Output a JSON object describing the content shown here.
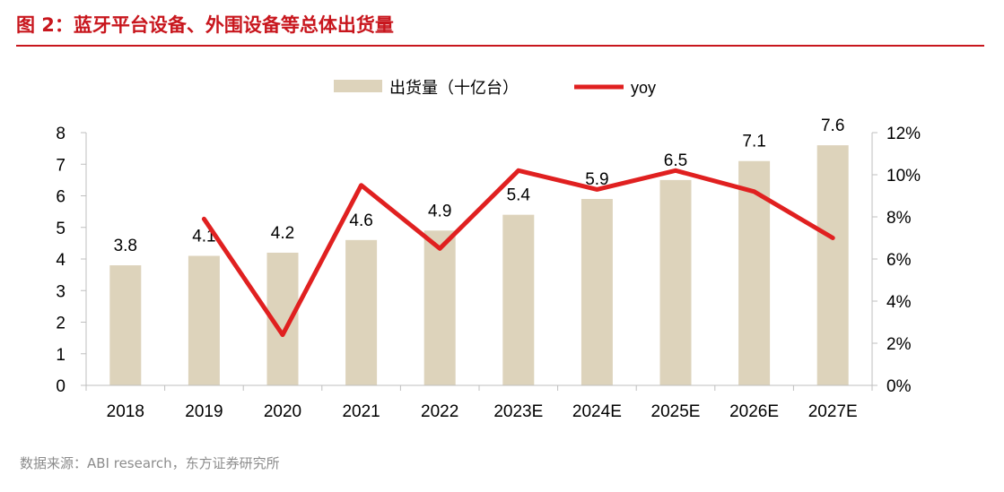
{
  "figure": {
    "title": "图 2：蓝牙平台设备、外围设备等总体出货量",
    "source": "数据来源：ABI research，东方证券研究所"
  },
  "colors": {
    "title_red": "#c8161d",
    "bar_fill": "#ddd3bb",
    "line_red": "#e02020",
    "axis_gray": "#bfbfbf",
    "text": "#000000"
  },
  "chart_data": {
    "type": "bar",
    "categories": [
      "2018",
      "2019",
      "2020",
      "2021",
      "2022",
      "2023E",
      "2024E",
      "2025E",
      "2026E",
      "2027E"
    ],
    "series": [
      {
        "name": "出货量（十亿台）",
        "type": "bar",
        "axis": "left",
        "values": [
          3.8,
          4.1,
          4.2,
          4.6,
          4.9,
          5.4,
          5.9,
          6.5,
          7.1,
          7.6
        ],
        "data_labels": [
          "3.8",
          "4.1",
          "4.2",
          "4.6",
          "4.9",
          "5.4",
          "5.9",
          "6.5",
          "7.1",
          "7.6"
        ]
      },
      {
        "name": "yoy",
        "type": "line",
        "axis": "right",
        "values": [
          null,
          0.079,
          0.024,
          0.095,
          0.065,
          0.102,
          0.093,
          0.102,
          0.092,
          0.07
        ]
      }
    ],
    "y_left": {
      "min": 0,
      "max": 8,
      "ticks": [
        0,
        1,
        2,
        3,
        4,
        5,
        6,
        7,
        8
      ],
      "tick_labels": [
        "0",
        "1",
        "2",
        "3",
        "4",
        "5",
        "6",
        "7",
        "8"
      ]
    },
    "y_right": {
      "min": 0,
      "max": 0.12,
      "ticks": [
        0,
        0.02,
        0.04,
        0.06,
        0.08,
        0.1,
        0.12
      ],
      "tick_labels": [
        "0%",
        "2%",
        "4%",
        "6%",
        "8%",
        "10%",
        "12%"
      ]
    },
    "legend": {
      "position": "top-center",
      "items": [
        "出货量（十亿台）",
        "yoy"
      ]
    },
    "grid": false
  }
}
